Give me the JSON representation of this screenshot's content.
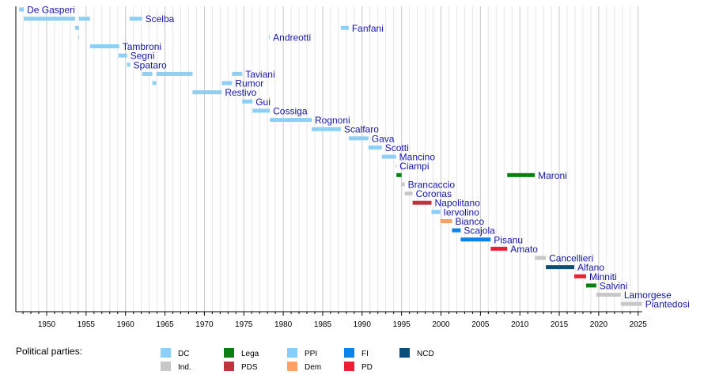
{
  "chart_data": {
    "type": "timeline",
    "xlim": [
      1946.1,
      2025.5
    ],
    "x_ticks": [
      1950,
      1955,
      1960,
      1965,
      1970,
      1975,
      1980,
      1985,
      1990,
      1995,
      2000,
      2005,
      2010,
      2015,
      2020,
      2025
    ],
    "grid": "vertical, every year",
    "legend_title": "Political parties:",
    "legend_placement": "bottom-left",
    "parties": [
      {
        "key": "DC",
        "label": "DC",
        "color": "#8ecff5"
      },
      {
        "key": "Ind",
        "label": "Ind.",
        "color": "#c8c8c8"
      },
      {
        "key": "Lega",
        "label": "Lega",
        "color": "#0a8012"
      },
      {
        "key": "PDS",
        "label": "PDS",
        "color": "#c0343c"
      },
      {
        "key": "PPI",
        "label": "PPI",
        "color": "#87cefa"
      },
      {
        "key": "Dem",
        "label": "Dem",
        "color": "#ffa066"
      },
      {
        "key": "FI",
        "label": "FI",
        "color": "#0a84e8"
      },
      {
        "key": "PD",
        "label": "PD",
        "color": "#ec2032"
      },
      {
        "key": "NCD",
        "label": "NCD",
        "color": "#0b4f78"
      }
    ],
    "ministers": [
      {
        "name": "De Gasperi",
        "terms": [
          [
            1946.5,
            1947.1,
            "DC"
          ]
        ]
      },
      {
        "name": "Scelba",
        "terms": [
          [
            1947.1,
            1953.6,
            "DC"
          ],
          [
            1954.1,
            1955.5,
            "DC"
          ],
          [
            1960.5,
            1962.1,
            "DC"
          ]
        ]
      },
      {
        "name": "Fanfani",
        "terms": [
          [
            1953.6,
            1954.1,
            "DC"
          ],
          [
            1987.3,
            1988.3,
            "DC"
          ]
        ]
      },
      {
        "name": "Andreotti",
        "terms": [
          [
            1954.0,
            1954.1,
            "DC"
          ],
          [
            1978.2,
            1978.3,
            "DC"
          ]
        ]
      },
      {
        "name": "Tambroni",
        "terms": [
          [
            1955.5,
            1959.2,
            "DC"
          ]
        ]
      },
      {
        "name": "Segni",
        "terms": [
          [
            1959.1,
            1960.2,
            "DC"
          ]
        ]
      },
      {
        "name": "Spataro",
        "terms": [
          [
            1960.2,
            1960.6,
            "DC"
          ]
        ]
      },
      {
        "name": "Taviani",
        "terms": [
          [
            1962.1,
            1963.4,
            "DC"
          ],
          [
            1963.9,
            1968.5,
            "DC"
          ],
          [
            1973.5,
            1974.8,
            "DC"
          ]
        ]
      },
      {
        "name": "Rumor",
        "terms": [
          [
            1963.4,
            1963.9,
            "DC"
          ],
          [
            1972.2,
            1973.5,
            "DC"
          ]
        ]
      },
      {
        "name": "Restivo",
        "terms": [
          [
            1968.5,
            1972.2,
            "DC"
          ]
        ]
      },
      {
        "name": "Gui",
        "terms": [
          [
            1974.8,
            1976.1,
            "DC"
          ]
        ]
      },
      {
        "name": "Cossiga",
        "terms": [
          [
            1976.1,
            1978.3,
            "DC"
          ]
        ]
      },
      {
        "name": "Rognoni",
        "terms": [
          [
            1978.3,
            1983.6,
            "DC"
          ]
        ]
      },
      {
        "name": "Scalfaro",
        "terms": [
          [
            1983.6,
            1987.3,
            "DC"
          ]
        ]
      },
      {
        "name": "Gava",
        "terms": [
          [
            1988.3,
            1990.8,
            "DC"
          ]
        ]
      },
      {
        "name": "Scotti",
        "terms": [
          [
            1990.8,
            1992.5,
            "DC"
          ]
        ]
      },
      {
        "name": "Mancino",
        "terms": [
          [
            1992.5,
            1994.3,
            "DC"
          ]
        ]
      },
      {
        "name": "Ciampi",
        "terms": [
          [
            1994.25,
            1994.35,
            "Ind"
          ]
        ]
      },
      {
        "name": "Maroni",
        "terms": [
          [
            1994.35,
            1995.0,
            "Lega"
          ],
          [
            2008.4,
            2011.9,
            "Lega"
          ]
        ]
      },
      {
        "name": "Brancaccio",
        "terms": [
          [
            1995.0,
            1995.4,
            "Ind"
          ]
        ]
      },
      {
        "name": "Coronas",
        "terms": [
          [
            1995.4,
            1996.4,
            "Ind"
          ]
        ]
      },
      {
        "name": "Napolitano",
        "terms": [
          [
            1996.4,
            1998.8,
            "PDS"
          ]
        ]
      },
      {
        "name": "Iervolino",
        "terms": [
          [
            1998.8,
            1999.9,
            "PPI"
          ]
        ]
      },
      {
        "name": "Bianco",
        "terms": [
          [
            1999.9,
            2001.4,
            "Dem"
          ]
        ]
      },
      {
        "name": "Scajola",
        "terms": [
          [
            2001.4,
            2002.5,
            "FI"
          ]
        ]
      },
      {
        "name": "Pisanu",
        "terms": [
          [
            2002.5,
            2006.3,
            "FI"
          ]
        ]
      },
      {
        "name": "Amato",
        "terms": [
          [
            2006.3,
            2008.4,
            "PD"
          ]
        ]
      },
      {
        "name": "Cancellieri",
        "terms": [
          [
            2011.9,
            2013.3,
            "Ind"
          ]
        ]
      },
      {
        "name": "Alfano",
        "terms": [
          [
            2013.3,
            2016.9,
            "NCD"
          ]
        ]
      },
      {
        "name": "Minniti",
        "terms": [
          [
            2016.9,
            2018.4,
            "PD"
          ]
        ]
      },
      {
        "name": "Salvini",
        "terms": [
          [
            2018.4,
            2019.7,
            "Lega"
          ]
        ]
      },
      {
        "name": "Lamorgese",
        "terms": [
          [
            2019.7,
            2022.8,
            "Ind"
          ]
        ]
      },
      {
        "name": "Piantedosi",
        "terms": [
          [
            2022.8,
            2025.5,
            "Ind"
          ]
        ]
      }
    ]
  }
}
